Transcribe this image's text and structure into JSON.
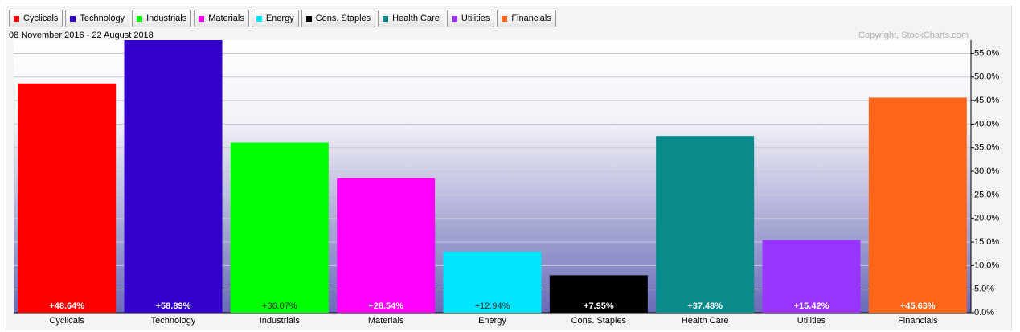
{
  "chart_data": {
    "type": "bar",
    "subtitle": "08 November 2016 - 22 August 2018",
    "copyright": "Copyright, StockCharts.com",
    "categories": [
      "Cyclicals",
      "Technology",
      "Industrials",
      "Materials",
      "Energy",
      "Cons. Staples",
      "Health Care",
      "Utilities",
      "Financials"
    ],
    "values": [
      48.64,
      58.89,
      36.07,
      28.54,
      12.94,
      7.95,
      37.48,
      15.42,
      45.63
    ],
    "value_labels": [
      "+48.64%",
      "+58.89%",
      "+36.07%",
      "+28.54%",
      "+12.94%",
      "+7.95%",
      "+37.48%",
      "+15.42%",
      "+45.63%"
    ],
    "colors": [
      "#ff0000",
      "#3300cc",
      "#00ff00",
      "#ff00ff",
      "#00e5ff",
      "#000000",
      "#0a8a8a",
      "#9933ff",
      "#ff6619"
    ],
    "ylim": [
      0,
      59
    ],
    "yticks": [
      {
        "value": 0,
        "label": "0.0%"
      },
      {
        "value": 5,
        "label": "5.0%"
      },
      {
        "value": 10,
        "label": "10.0%"
      },
      {
        "value": 15,
        "label": "15.0%"
      },
      {
        "value": 20,
        "label": "20.0%"
      },
      {
        "value": 25,
        "label": "25.0%"
      },
      {
        "value": 30,
        "label": "30.0%"
      },
      {
        "value": 35,
        "label": "35.0%"
      },
      {
        "value": 40,
        "label": "40.0%"
      },
      {
        "value": 45,
        "label": "45.0%"
      },
      {
        "value": 50,
        "label": "50.0%"
      },
      {
        "value": 55,
        "label": "55.0%"
      }
    ],
    "grid": true
  }
}
